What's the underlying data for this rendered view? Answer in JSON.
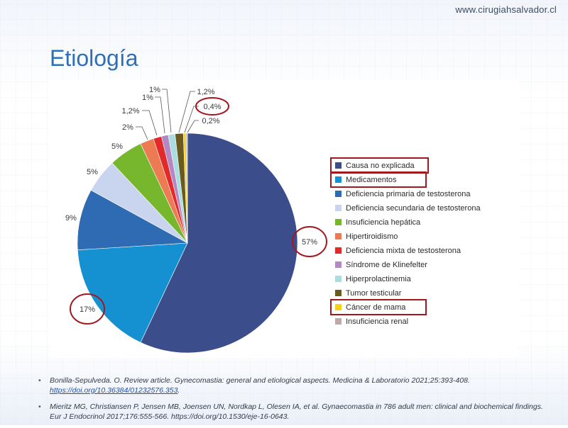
{
  "header": {
    "website": "www.cirugiahsalvador.cl",
    "title": "Etiología"
  },
  "chart_data": {
    "type": "pie",
    "title": "",
    "start_angle_deg": 0,
    "direction": "clockwise",
    "categories": [
      "Causa no explicada",
      "Medicamentos",
      "Deficiencia primaria de testosterona",
      "Deficiencia secundaria de testosterona",
      "Insuficiencia hepática",
      "Hipertiroidismo",
      "Deficiencia mixta de testosterona",
      "Síndrome de Klinefelter",
      "Hiperprolactinemia",
      "Tumor testicular",
      "Cáncer de mama",
      "Insuficiencia renal"
    ],
    "values": [
      57,
      17,
      9,
      5,
      5,
      2,
      1.2,
      1,
      1,
      1.2,
      0.4,
      0.2
    ],
    "labels": [
      "57%",
      "17%",
      "9%",
      "5%",
      "5%",
      "2%",
      "1,2%",
      "1%",
      "1%",
      "1,2%",
      "0,4%",
      "0,2%"
    ],
    "colors": [
      "#3c4d8c",
      "#1591d1",
      "#2f6bb3",
      "#c9d5ef",
      "#77b72e",
      "#ec7a53",
      "#e32a2a",
      "#b488c2",
      "#a9dde0",
      "#6b5a1e",
      "#f6d21a",
      "#c0a8a8"
    ],
    "legend": "right",
    "highlighted": [
      "Causa no explicada",
      "Medicamentos",
      "Cáncer de mama"
    ],
    "highlighted_values": [
      "57%",
      "17%",
      "0,4%"
    ]
  },
  "references": [
    {
      "text": "Bonilla-Sepulveda. O. Review article. Gynecomastia: general and etiological aspects. Medicina & Laboratorio 2021;25:393-408. ",
      "link": "https://doi.org/10.36384/01232576.353",
      "suffix": "."
    },
    {
      "text": "Mieritz MG, Christiansen P, Jensen MB, Joensen UN, Nordkap L, Olesen IA, et al. Gynaecomastia in 786 adult men: clinical and biochemical findings. Eur J Endocrinol 2017;176:555-566. https://doi.org/10.1530/eje-16-0643.",
      "link": "",
      "suffix": ""
    }
  ]
}
